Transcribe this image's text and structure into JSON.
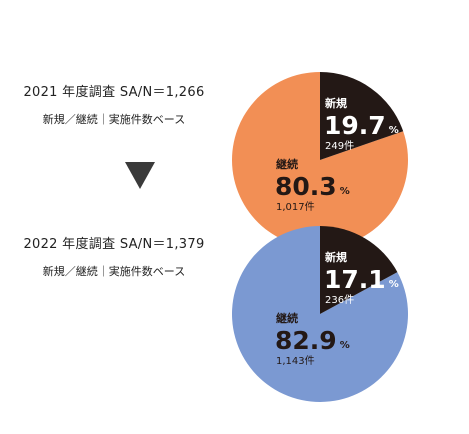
{
  "surveys": [
    {
      "heading": "2021 年度調査  SA/N＝1,266",
      "base": "新規／継続｜実施件数ベース"
    },
    {
      "heading": "2022 年度調査  SA/N＝1,379",
      "base": "新規／継続｜実施件数ベース"
    }
  ],
  "colors": {
    "new": "#231815",
    "continuing_2021": "#f28f55",
    "continuing_2022": "#7b99d2",
    "arrow": "#3a3a3a",
    "text_on_light": "#231815",
    "text_on_dark": "#ffffff"
  },
  "chart_data": [
    {
      "type": "pie",
      "title": "",
      "series": [
        {
          "name": "新規",
          "value": 19.7,
          "pct_text": "19.7",
          "unit": "%",
          "count_text": "249件"
        },
        {
          "name": "継続",
          "value": 80.3,
          "pct_text": "80.3",
          "unit": "%",
          "count_text": "1,017件"
        }
      ]
    },
    {
      "type": "pie",
      "title": "",
      "series": [
        {
          "name": "新規",
          "value": 17.1,
          "pct_text": "17.1",
          "unit": "%",
          "count_text": "236件"
        },
        {
          "name": "継続",
          "value": 82.9,
          "pct_text": "82.9",
          "unit": "%",
          "count_text": "1,143件"
        }
      ]
    }
  ]
}
